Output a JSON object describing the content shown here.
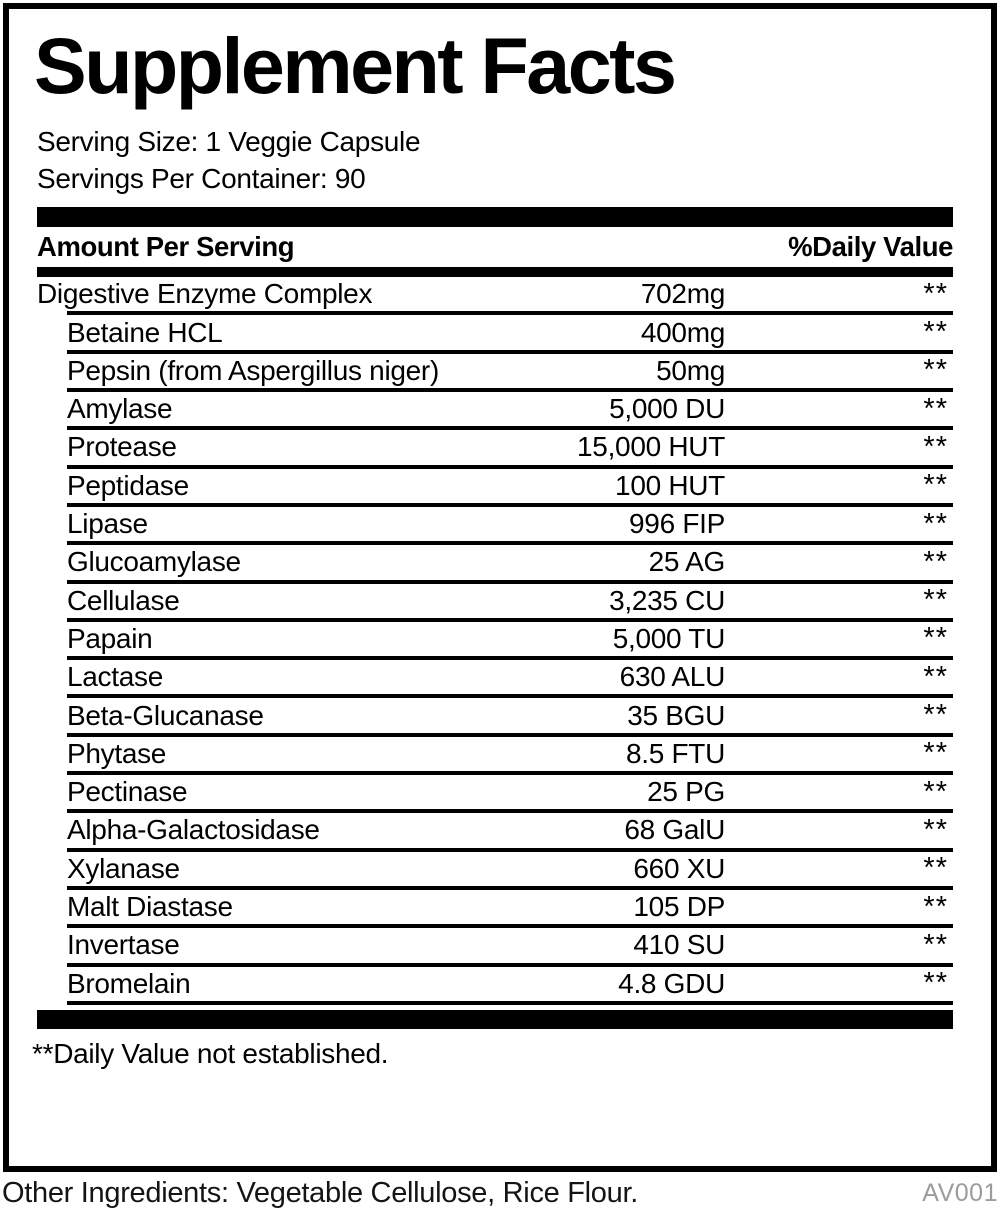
{
  "label": {
    "title": "Supplement Facts",
    "serving_size": "Serving Size: 1 Veggie Capsule",
    "servings_per_container": "Servings Per Container: 90",
    "columns": {
      "amount": "Amount Per Serving",
      "daily_value": "%Daily Value"
    },
    "rows": [
      {
        "name": "Digestive Enzyme Complex",
        "amount": "702mg",
        "dv": "**",
        "indent": false
      },
      {
        "name": "Betaine HCL",
        "amount": "400mg",
        "dv": "**",
        "indent": true
      },
      {
        "name": "Pepsin (from Aspergillus niger)",
        "amount": "50mg",
        "dv": "**",
        "indent": true
      },
      {
        "name": "Amylase",
        "amount": "5,000 DU",
        "dv": "**",
        "indent": true
      },
      {
        "name": "Protease",
        "amount": "15,000 HUT",
        "dv": "**",
        "indent": true
      },
      {
        "name": "Peptidase",
        "amount": "100 HUT",
        "dv": "**",
        "indent": true
      },
      {
        "name": "Lipase",
        "amount": "996 FIP",
        "dv": "**",
        "indent": true
      },
      {
        "name": "Glucoamylase",
        "amount": "25 AG",
        "dv": "**",
        "indent": true
      },
      {
        "name": "Cellulase",
        "amount": "3,235 CU",
        "dv": "**",
        "indent": true
      },
      {
        "name": "Papain",
        "amount": "5,000 TU",
        "dv": "**",
        "indent": true
      },
      {
        "name": "Lactase",
        "amount": "630 ALU",
        "dv": "**",
        "indent": true
      },
      {
        "name": "Beta-Glucanase",
        "amount": "35 BGU",
        "dv": "**",
        "indent": true
      },
      {
        "name": "Phytase",
        "amount": "8.5 FTU",
        "dv": "**",
        "indent": true
      },
      {
        "name": "Pectinase",
        "amount": "25 PG",
        "dv": "**",
        "indent": true
      },
      {
        "name": "Alpha-Galactosidase",
        "amount": "68 GalU",
        "dv": "**",
        "indent": true
      },
      {
        "name": "Xylanase",
        "amount": "660 XU",
        "dv": "**",
        "indent": true
      },
      {
        "name": "Malt Diastase",
        "amount": "105 DP",
        "dv": "**",
        "indent": true
      },
      {
        "name": "Invertase",
        "amount": "410 SU",
        "dv": "**",
        "indent": true
      },
      {
        "name": "Bromelain",
        "amount": "4.8 GDU",
        "dv": "**",
        "indent": true
      }
    ],
    "footnote": "**Daily Value not established."
  },
  "footer": {
    "other_ingredients": "Other Ingredients: Vegetable Cellulose, Rice Flour.",
    "code": "AV001"
  },
  "colors": {
    "text": "#000000",
    "muted_code": "#9c9c9c",
    "background": "#ffffff",
    "rule": "#000000"
  }
}
